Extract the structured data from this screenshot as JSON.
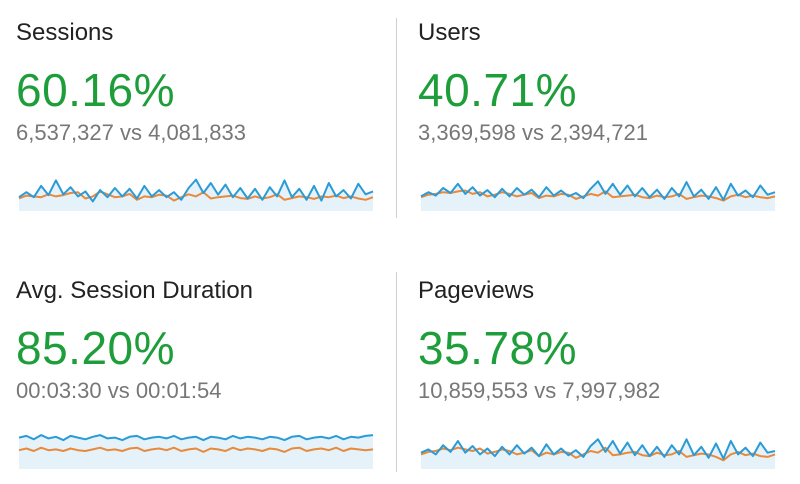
{
  "colors": {
    "percent_green": "#1e9e3a",
    "series_blue": "#2a9bd6",
    "series_orange": "#e8893b",
    "fill_blue": "#e5f2fa"
  },
  "metrics": [
    {
      "title": "Sessions",
      "percent": "60.16%",
      "compare": "6,537,327 vs 4,081,833",
      "sparkline": {
        "current": [
          0.28,
          0.4,
          0.28,
          0.55,
          0.33,
          0.68,
          0.35,
          0.52,
          0.3,
          0.42,
          0.18,
          0.45,
          0.28,
          0.5,
          0.3,
          0.48,
          0.25,
          0.55,
          0.3,
          0.45,
          0.28,
          0.4,
          0.22,
          0.5,
          0.7,
          0.38,
          0.62,
          0.34,
          0.58,
          0.28,
          0.5,
          0.25,
          0.48,
          0.22,
          0.52,
          0.3,
          0.68,
          0.28,
          0.48,
          0.22,
          0.55,
          0.2,
          0.62,
          0.3,
          0.45,
          0.25,
          0.6,
          0.35,
          0.42
        ],
        "previous": [
          0.25,
          0.32,
          0.3,
          0.28,
          0.35,
          0.3,
          0.33,
          0.38,
          0.4,
          0.25,
          0.3,
          0.42,
          0.35,
          0.28,
          0.3,
          0.36,
          0.22,
          0.3,
          0.28,
          0.34,
          0.32,
          0.2,
          0.28,
          0.35,
          0.3,
          0.4,
          0.25,
          0.28,
          0.3,
          0.32,
          0.26,
          0.24,
          0.3,
          0.25,
          0.28,
          0.35,
          0.22,
          0.26,
          0.3,
          0.28,
          0.24,
          0.3,
          0.28,
          0.32,
          0.26,
          0.3,
          0.25,
          0.22,
          0.28
        ]
      }
    },
    {
      "title": "Users",
      "percent": "40.71%",
      "compare": "3,369,598 vs 2,394,721",
      "sparkline": {
        "current": [
          0.3,
          0.4,
          0.32,
          0.5,
          0.38,
          0.6,
          0.36,
          0.52,
          0.32,
          0.45,
          0.28,
          0.48,
          0.3,
          0.5,
          0.34,
          0.46,
          0.28,
          0.52,
          0.32,
          0.44,
          0.3,
          0.38,
          0.26,
          0.48,
          0.66,
          0.36,
          0.6,
          0.34,
          0.56,
          0.3,
          0.5,
          0.28,
          0.46,
          0.24,
          0.5,
          0.3,
          0.64,
          0.3,
          0.46,
          0.24,
          0.52,
          0.22,
          0.6,
          0.32,
          0.44,
          0.28,
          0.56,
          0.34,
          0.4
        ],
        "previous": [
          0.28,
          0.34,
          0.36,
          0.4,
          0.38,
          0.42,
          0.44,
          0.36,
          0.4,
          0.3,
          0.34,
          0.4,
          0.36,
          0.3,
          0.34,
          0.38,
          0.26,
          0.32,
          0.3,
          0.36,
          0.34,
          0.24,
          0.3,
          0.36,
          0.32,
          0.42,
          0.28,
          0.3,
          0.32,
          0.34,
          0.28,
          0.26,
          0.32,
          0.28,
          0.3,
          0.36,
          0.24,
          0.28,
          0.32,
          0.3,
          0.26,
          0.2,
          0.3,
          0.34,
          0.28,
          0.32,
          0.28,
          0.26,
          0.3
        ]
      }
    },
    {
      "title": "Avg. Session Duration",
      "percent": "85.20%",
      "compare": "00:03:30 vs 00:01:54",
      "sparkline": {
        "current": [
          0.7,
          0.74,
          0.66,
          0.76,
          0.68,
          0.72,
          0.64,
          0.74,
          0.7,
          0.66,
          0.72,
          0.76,
          0.68,
          0.7,
          0.64,
          0.72,
          0.74,
          0.66,
          0.7,
          0.72,
          0.68,
          0.74,
          0.66,
          0.7,
          0.72,
          0.64,
          0.72,
          0.7,
          0.66,
          0.74,
          0.68,
          0.72,
          0.7,
          0.66,
          0.72,
          0.7,
          0.64,
          0.72,
          0.74,
          0.66,
          0.7,
          0.72,
          0.68,
          0.74,
          0.66,
          0.72,
          0.7,
          0.74,
          0.76
        ],
        "previous": [
          0.4,
          0.44,
          0.38,
          0.46,
          0.4,
          0.42,
          0.38,
          0.44,
          0.4,
          0.38,
          0.42,
          0.46,
          0.4,
          0.42,
          0.38,
          0.44,
          0.46,
          0.38,
          0.42,
          0.44,
          0.4,
          0.46,
          0.38,
          0.42,
          0.44,
          0.36,
          0.44,
          0.42,
          0.38,
          0.46,
          0.4,
          0.44,
          0.42,
          0.38,
          0.44,
          0.42,
          0.36,
          0.44,
          0.46,
          0.38,
          0.42,
          0.44,
          0.4,
          0.46,
          0.38,
          0.44,
          0.42,
          0.4,
          0.42
        ]
      }
    },
    {
      "title": "Pageviews",
      "percent": "35.78%",
      "compare": "10,859,553 vs 7,997,982",
      "sparkline": {
        "current": [
          0.34,
          0.42,
          0.3,
          0.52,
          0.36,
          0.62,
          0.34,
          0.5,
          0.3,
          0.44,
          0.26,
          0.48,
          0.3,
          0.52,
          0.32,
          0.46,
          0.26,
          0.54,
          0.3,
          0.44,
          0.28,
          0.4,
          0.24,
          0.5,
          0.66,
          0.36,
          0.62,
          0.32,
          0.58,
          0.28,
          0.52,
          0.26,
          0.48,
          0.24,
          0.52,
          0.3,
          0.66,
          0.28,
          0.48,
          0.22,
          0.56,
          0.2,
          0.62,
          0.3,
          0.46,
          0.26,
          0.58,
          0.34,
          0.38
        ],
        "previous": [
          0.3,
          0.36,
          0.38,
          0.44,
          0.4,
          0.46,
          0.42,
          0.38,
          0.44,
          0.32,
          0.36,
          0.42,
          0.38,
          0.3,
          0.34,
          0.4,
          0.26,
          0.34,
          0.3,
          0.36,
          0.34,
          0.22,
          0.3,
          0.38,
          0.34,
          0.46,
          0.28,
          0.3,
          0.34,
          0.36,
          0.28,
          0.26,
          0.34,
          0.28,
          0.3,
          0.38,
          0.24,
          0.28,
          0.32,
          0.3,
          0.24,
          0.16,
          0.3,
          0.36,
          0.28,
          0.32,
          0.26,
          0.24,
          0.3
        ]
      }
    }
  ]
}
